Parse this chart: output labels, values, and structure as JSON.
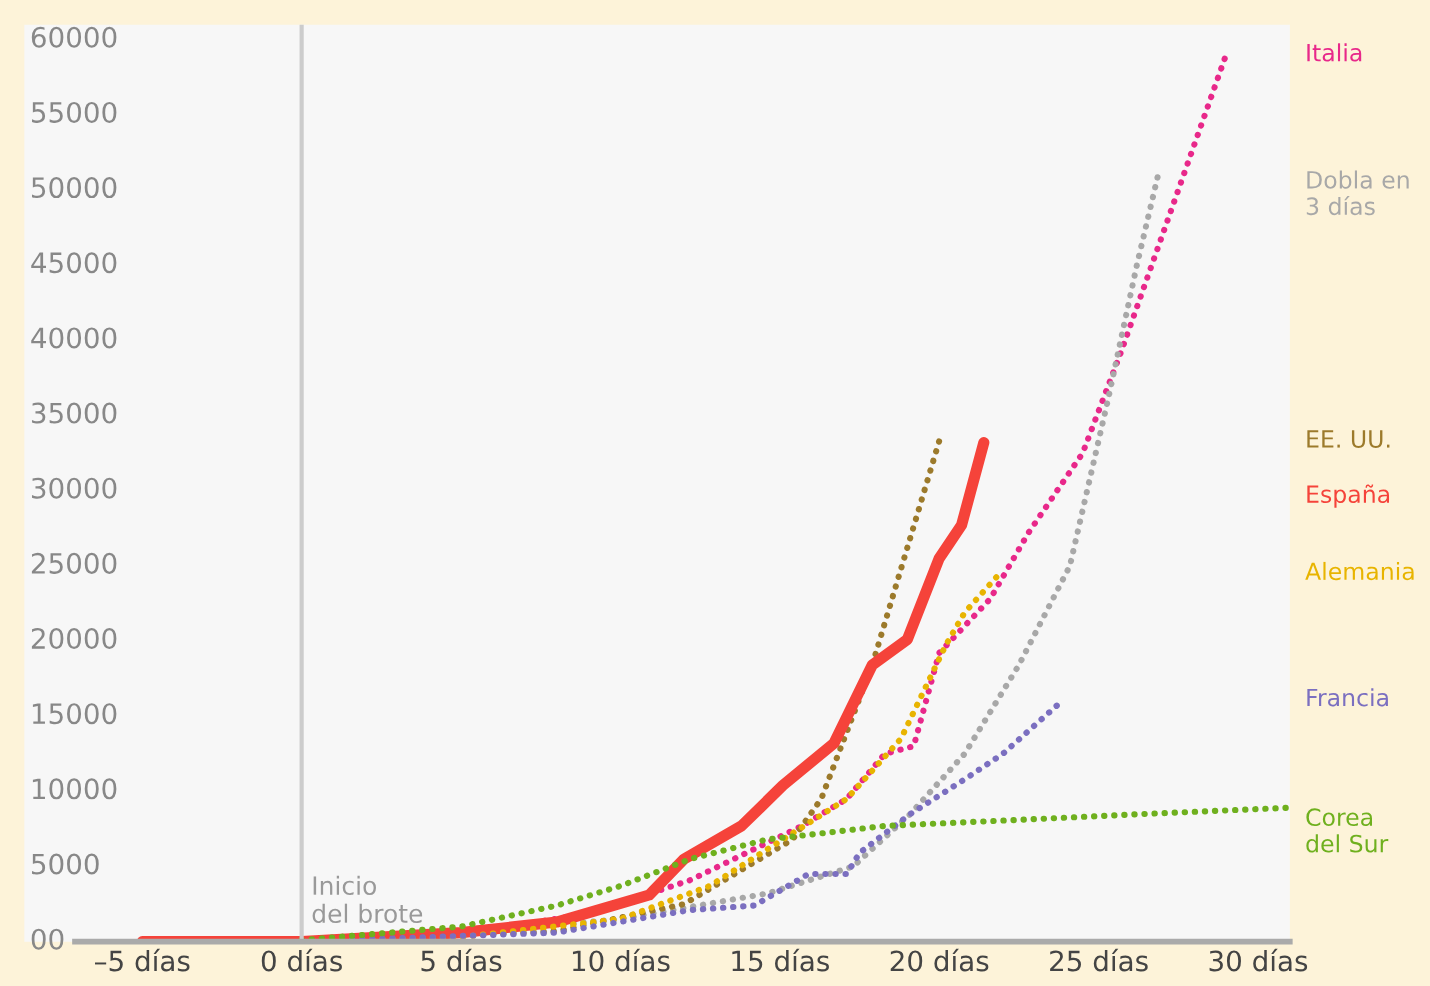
{
  "chart_data": {
    "type": "line",
    "xlim": [
      -8.7,
      31
    ],
    "xticks": [
      {
        "value": -5,
        "label": "–5 días"
      },
      {
        "value": 0,
        "label": "0 días"
      },
      {
        "value": 5,
        "label": "5 días"
      },
      {
        "value": 10,
        "label": "10 días"
      },
      {
        "value": 15,
        "label": "15 días"
      },
      {
        "value": 20,
        "label": "20 días"
      },
      {
        "value": 25,
        "label": "25 días"
      },
      {
        "value": 30,
        "label": "30 días"
      }
    ],
    "ylim": [
      0,
      61000
    ],
    "yticks": [
      {
        "value": 0,
        "label": "00"
      },
      5000,
      10000,
      15000,
      20000,
      25000,
      30000,
      35000,
      40000,
      45000,
      50000,
      55000,
      60000
    ],
    "grid": false,
    "legend": false,
    "ref_lines": [
      {
        "axis": "x",
        "value": 0,
        "label": "Inicio\ndel brote",
        "color": "#cccccc"
      }
    ],
    "series": [
      {
        "name": "Italia",
        "color": "#e8288a",
        "line_style": "dotted",
        "x": [
          -5,
          0,
          5,
          9.1,
          12.2,
          15.7,
          17.1,
          18.3,
          19.2,
          20.0,
          21.6,
          22.8,
          24.5,
          25.7,
          29.0
        ],
        "values": [
          0,
          100,
          500,
          1900,
          4100,
          7700,
          9500,
          12500,
          13000,
          19200,
          22800,
          27200,
          32500,
          39200,
          59000
        ]
      },
      {
        "name": "Dobla en\n3 días",
        "color": "#a8a8a8",
        "line_style": "dotted",
        "x": [
          0,
          5,
          10,
          14.6,
          17.3,
          19.1,
          20.8,
          22.5,
          24.1,
          25.3,
          26.2,
          26.9
        ],
        "values": [
          100,
          500,
          1500,
          3200,
          5000,
          8500,
          12500,
          18400,
          25000,
          36100,
          45000,
          51300
        ]
      },
      {
        "name": "EE. UU.",
        "color": "#9c7a2b",
        "line_style": "dotted",
        "x": [
          0,
          8,
          12,
          15.4,
          16.3,
          17.9,
          20.0
        ],
        "values": [
          0,
          700,
          2500,
          6800,
          9500,
          18400,
          33300
        ]
      },
      {
        "name": "España",
        "color": "#f5433a",
        "line_style": "solid",
        "x": [
          -5,
          0,
          5,
          8,
          10.9,
          12.0,
          13.8,
          15.1,
          16.7,
          17.9,
          19.0,
          20.0,
          20.7,
          21.4
        ],
        "values": [
          0,
          0,
          600,
          1300,
          3100,
          5500,
          7700,
          10400,
          13200,
          18400,
          20100,
          25500,
          27700,
          33200
        ]
      },
      {
        "name": "Alemania",
        "color": "#e8b400",
        "line_style": "dotted",
        "x": [
          0,
          5,
          10,
          12.8,
          14.8,
          17.1,
          18.8,
          20.2,
          20.8,
          21.9
        ],
        "values": [
          0,
          300,
          1500,
          3700,
          6400,
          9500,
          13500,
          19700,
          21900,
          24500
        ]
      },
      {
        "name": "Francia",
        "color": "#7b6fc0",
        "line_style": "dotted",
        "x": [
          0,
          8,
          12.2,
          14.2,
          15.9,
          17.1,
          17.5,
          19.1,
          20.8,
          22.0,
          23.9
        ],
        "values": [
          0,
          600,
          2100,
          2400,
          4500,
          4500,
          5900,
          8500,
          10800,
          12500,
          16100
        ]
      },
      {
        "name": "Corea\ndel Sur",
        "color": "#6fb01e",
        "line_style": "dotted",
        "x": [
          0,
          5,
          8.0,
          10,
          12.2,
          14.6,
          16.3,
          18.3,
          22.5,
          26.5,
          30.9
        ],
        "values": [
          100,
          1000,
          2400,
          3700,
          5500,
          6800,
          7200,
          7700,
          8100,
          8500,
          8900
        ]
      }
    ]
  }
}
